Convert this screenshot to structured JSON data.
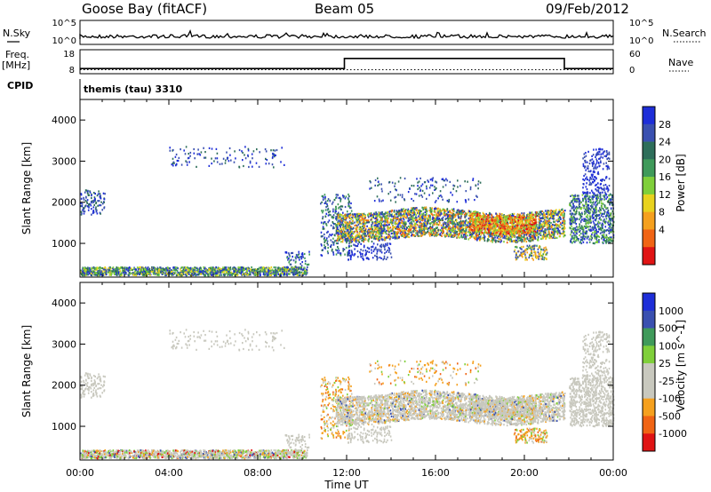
{
  "header": {
    "station": "Goose Bay (fitACF)",
    "beam": "Beam 05",
    "date": "09/Feb/2012"
  },
  "panels": {
    "nsky_label": "N.Sky",
    "nsky_ticks": [
      "10^5",
      "10^0"
    ],
    "nsearch_label": "N.Search",
    "nsearch_ticks": [
      "10^5",
      "10^0"
    ],
    "freq_label_1": "Freq.",
    "freq_label_2": "[MHz]",
    "freq_ticks": [
      "18",
      "8"
    ],
    "nave_label": "Nave",
    "nave_ticks": [
      "60",
      "0"
    ],
    "cpid_label": "CPID",
    "cpid_value": "themis (tau) 3310"
  },
  "colors": {
    "power": [
      "#1e2ed8",
      "#3a50b0",
      "#2e6e5a",
      "#3f9a5a",
      "#7fcf3a",
      "#e8d21e",
      "#f5a01e",
      "#f06414",
      "#e01414"
    ],
    "velocity": [
      "#e01414",
      "#f06414",
      "#f5a01e",
      "#c8c8be",
      "#c8c8be",
      "#7fcf3a",
      "#3f9a5a",
      "#3a50b0",
      "#1e2ed8"
    ]
  },
  "chart_data": [
    {
      "type": "heatmap",
      "name": "power",
      "ylabel": "Slant Range [km]",
      "ylim": [
        180,
        4500
      ],
      "yticks": [
        1000,
        2000,
        3000,
        4000
      ],
      "xlim": [
        0,
        24
      ],
      "xticks": [
        "00:00",
        "04:00",
        "08:00",
        "12:00",
        "16:00",
        "20:00",
        "00:00"
      ],
      "colorbar_label": "Power [dB]",
      "colorbar_ticks": [
        "28",
        "24",
        "20",
        "16",
        "12",
        "8",
        "4"
      ],
      "grid": false
    },
    {
      "type": "heatmap",
      "name": "velocity",
      "ylabel": "Slant Range [km]",
      "ylim": [
        180,
        4500
      ],
      "yticks": [
        1000,
        2000,
        3000,
        4000
      ],
      "xlim": [
        0,
        24
      ],
      "xticks": [
        "00:00",
        "04:00",
        "08:00",
        "12:00",
        "16:00",
        "20:00",
        "00:00"
      ],
      "xlabel": "Time UT",
      "colorbar_label": "Velocity [m s^-1]",
      "colorbar_ticks": [
        "1000",
        "500",
        "100",
        "25",
        "-25",
        "-100",
        "-500",
        "-1000"
      ],
      "grid": false
    }
  ],
  "frequency_mhz": [
    [
      0,
      10
    ],
    [
      11.9,
      10
    ],
    [
      11.9,
      16
    ],
    [
      21.8,
      16
    ],
    [
      21.8,
      10
    ],
    [
      24,
      10
    ]
  ],
  "nave": [
    [
      0,
      8
    ],
    [
      24,
      8
    ]
  ]
}
